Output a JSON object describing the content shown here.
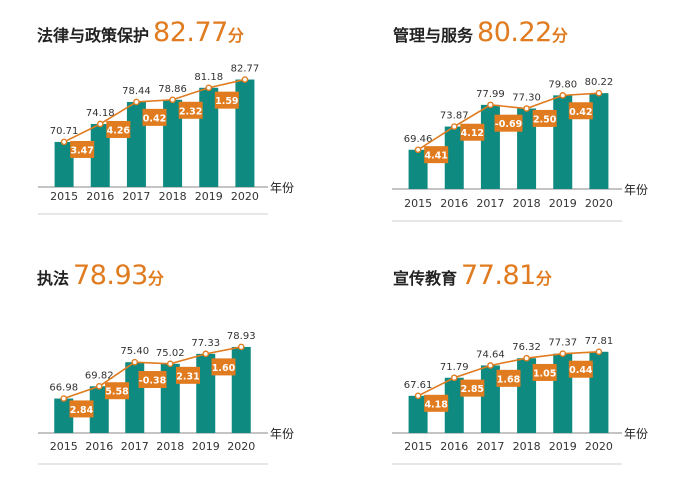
{
  "colors": {
    "bar": "#0f8a80",
    "line": "#e07b1f",
    "badge": "#e07b1f",
    "axis": "#8a8a8a"
  },
  "chart_data": [
    {
      "type": "bar",
      "title": "法律与政策保护",
      "score": "82.77",
      "unit": "分",
      "xlabel": "年份",
      "ylabel": "",
      "categories": [
        "2015",
        "2016",
        "2017",
        "2018",
        "2019",
        "2020"
      ],
      "values": [
        70.71,
        74.18,
        78.44,
        78.86,
        81.18,
        82.77
      ],
      "changes": [
        "3.47",
        "4.26",
        "0.42",
        "2.32",
        "1.59"
      ],
      "ylim": [
        62,
        85
      ],
      "grid": false
    },
    {
      "type": "bar",
      "title": "管理与服务",
      "score": "80.22",
      "unit": "分",
      "xlabel": "年份",
      "ylabel": "",
      "categories": [
        "2015",
        "2016",
        "2017",
        "2018",
        "2019",
        "2020"
      ],
      "values": [
        69.46,
        73.87,
        77.99,
        77.3,
        79.8,
        80.22
      ],
      "changes": [
        "4.41",
        "4.12",
        "-0.69",
        "2.50",
        "0.42"
      ],
      "ylim": [
        62,
        85
      ],
      "grid": false
    },
    {
      "type": "bar",
      "title": "执法",
      "score": "78.93",
      "unit": "分",
      "xlabel": "年份",
      "ylabel": "",
      "categories": [
        "2015",
        "2016",
        "2017",
        "2018",
        "2019",
        "2020"
      ],
      "values": [
        66.98,
        69.82,
        75.4,
        75.02,
        77.33,
        78.93
      ],
      "changes": [
        "2.84",
        "5.58",
        "-0.38",
        "2.31",
        "1.60"
      ],
      "ylim": [
        59,
        81
      ],
      "grid": false
    },
    {
      "type": "bar",
      "title": "宣传教育",
      "score": "77.81",
      "unit": "分",
      "xlabel": "年份",
      "ylabel": "",
      "categories": [
        "2015",
        "2016",
        "2017",
        "2018",
        "2019",
        "2020"
      ],
      "values": [
        67.61,
        71.79,
        74.64,
        76.32,
        77.37,
        77.81
      ],
      "changes": [
        "4.18",
        "2.85",
        "1.68",
        "1.05",
        "0.44"
      ],
      "ylim": [
        59,
        81
      ],
      "grid": false
    }
  ]
}
